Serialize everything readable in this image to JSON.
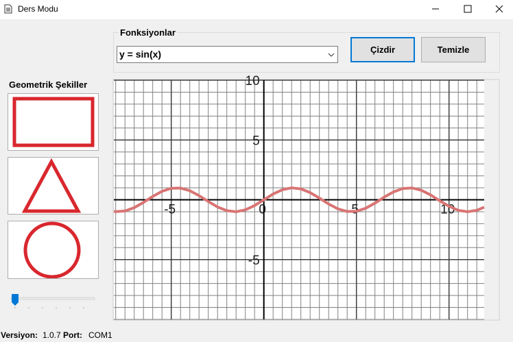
{
  "window": {
    "title": "Ders Modu"
  },
  "functions": {
    "label": "Fonksiyonlar",
    "selected": "y = sin(x)",
    "draw_button": "Çizdir",
    "clear_button": "Temizle"
  },
  "shapes": {
    "label": "Geometrik Şekiller"
  },
  "status": {
    "version_label": "Versiyon:",
    "version": "1.0.7",
    "port_label": "Port:",
    "port": "COM1"
  },
  "chart_data": {
    "type": "line",
    "xlim": [
      -8.1,
      11.9
    ],
    "ylim": [
      -10,
      10
    ],
    "xticks": [
      -5,
      0,
      5,
      10
    ],
    "yticks": [
      -5,
      5,
      10
    ],
    "grid": true,
    "xgrid_step": 0.5,
    "ygrid_step": 1,
    "x": [
      -8.1,
      -8,
      -7.5,
      -7,
      -6.5,
      -6,
      -5.5,
      -5,
      -4.5,
      -4,
      -3.5,
      -3,
      -2.5,
      -2,
      -1.5,
      -1,
      -0.5,
      0,
      0.5,
      1,
      1.5,
      2,
      2.5,
      3,
      3.5,
      4,
      4.5,
      5,
      5.5,
      6,
      6.5,
      7,
      7.5,
      8,
      8.5,
      9,
      9.5,
      10,
      10.5,
      11,
      11.5,
      11.9
    ],
    "series": [
      {
        "name": "y = sin(x)",
        "color": "#d97474",
        "values": [
          -0.97,
          -0.99,
          -0.94,
          -0.66,
          -0.22,
          0.28,
          0.71,
          0.96,
          0.98,
          0.76,
          0.35,
          -0.14,
          -0.6,
          -0.91,
          -1,
          -0.84,
          -0.48,
          0,
          0.48,
          0.84,
          1,
          0.91,
          0.6,
          0.14,
          -0.35,
          -0.76,
          -0.98,
          -0.96,
          -0.71,
          -0.28,
          0.22,
          0.66,
          0.94,
          0.99,
          0.8,
          0.41,
          -0.08,
          -0.54,
          -0.88,
          -1,
          -0.88,
          -0.62
        ]
      }
    ]
  }
}
